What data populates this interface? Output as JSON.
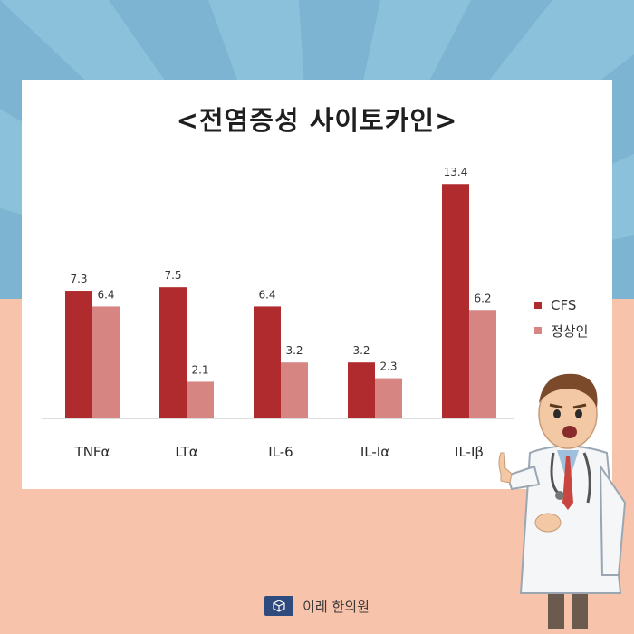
{
  "chart_data": {
    "type": "bar",
    "title": "<전염증성 사이토카인>",
    "categories": [
      "TNFα",
      "LTα",
      "IL-6",
      "IL-Iα",
      "IL-Iβ"
    ],
    "series": [
      {
        "name": "CFS",
        "values": [
          7.3,
          7.5,
          6.4,
          3.2,
          13.4
        ],
        "color": "#b02b2d"
      },
      {
        "name": "정상인",
        "values": [
          6.4,
          2.1,
          3.2,
          2.3,
          6.2
        ],
        "color": "#d68582"
      }
    ],
    "data_labels": [
      [
        "7.3",
        "7.5",
        "6.4",
        "3.2",
        "13.4"
      ],
      [
        "6.4",
        "2.1",
        "3.2",
        "2.3",
        "6.2"
      ]
    ],
    "xlabel": "",
    "ylabel": "",
    "ylim": [
      0,
      14.5
    ],
    "grid": false,
    "legend_position": "right"
  },
  "legend": {
    "cfs": "CFS",
    "normal": "정상인"
  },
  "footer": {
    "brand": "이레 한의원"
  },
  "colors": {
    "background_top": "#7cb4d1",
    "background_bottom": "#f8c3ab",
    "card": "#ffffff",
    "logo": "#2f4a7c"
  }
}
